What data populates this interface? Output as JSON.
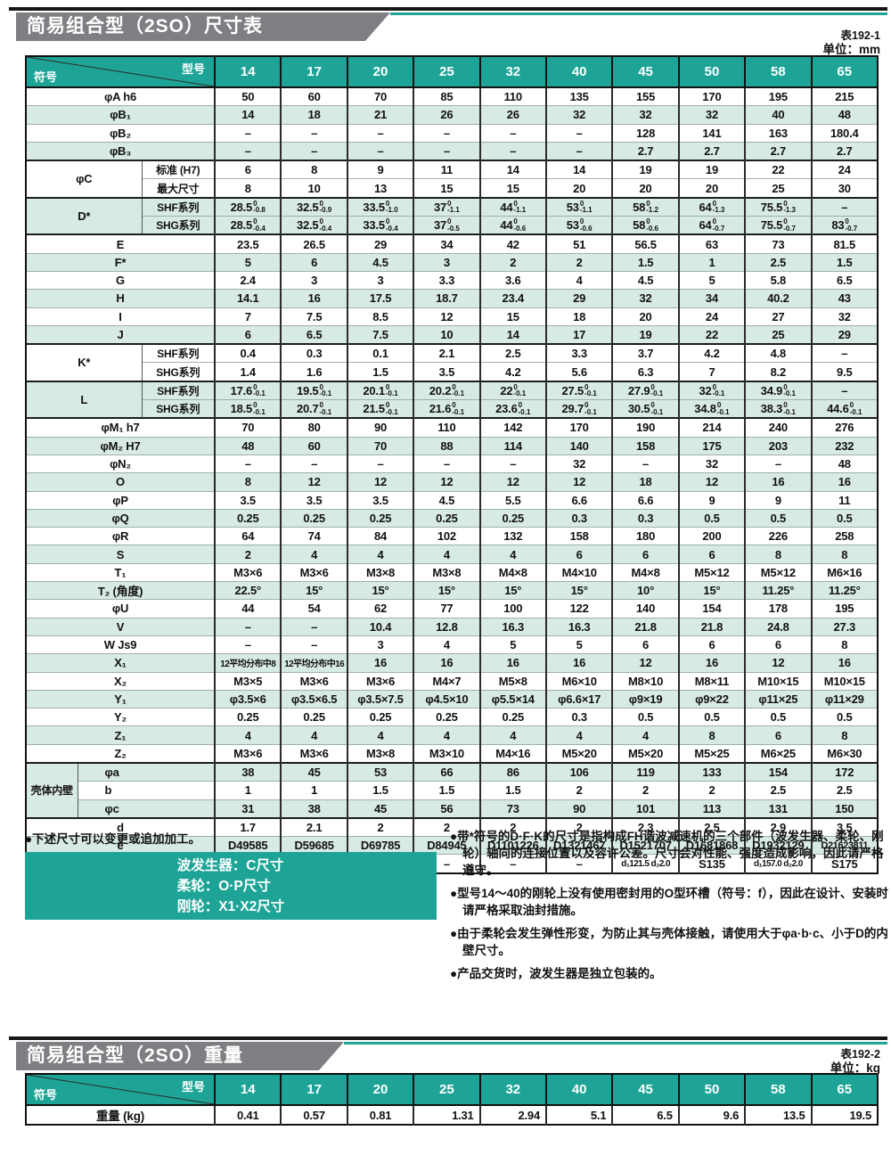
{
  "colors": {
    "teal": "#1ea496",
    "row_shade": "#d8eae6",
    "banner_gray": "#7d7f82"
  },
  "banner1": {
    "title": "简易组合型（2SO）尺寸表",
    "ref": "表192-1",
    "unit": "单位：mm"
  },
  "banner2": {
    "title": "简易组合型（2SO）重量",
    "ref": "表192-2",
    "unit": "单位：kg"
  },
  "dim_table": {
    "corner_top": "型号",
    "corner_bottom": "符号",
    "models": [
      "14",
      "17",
      "20",
      "25",
      "32",
      "40",
      "45",
      "50",
      "58",
      "65"
    ],
    "rows": [
      {
        "t": "plain",
        "label": "φA h6",
        "shade": 0,
        "cells": [
          "50",
          "60",
          "70",
          "85",
          "110",
          "135",
          "155",
          "170",
          "195",
          "215"
        ]
      },
      {
        "t": "plain",
        "label": "φB₁",
        "shade": 1,
        "cells": [
          "14",
          "18",
          "21",
          "26",
          "26",
          "32",
          "32",
          "32",
          "40",
          "48"
        ]
      },
      {
        "t": "plain",
        "label": "φB₂",
        "shade": 0,
        "cells": [
          "–",
          "–",
          "–",
          "–",
          "–",
          "–",
          "128",
          "141",
          "163",
          "180.4"
        ]
      },
      {
        "t": "plain",
        "label": "φB₃",
        "shade": 1,
        "cells": [
          "–",
          "–",
          "–",
          "–",
          "–",
          "–",
          "2.7",
          "2.7",
          "2.7",
          "2.7"
        ]
      },
      {
        "t": "g2",
        "label": "φC",
        "sub": "标准 (H7)",
        "shade": 0,
        "thick": 1,
        "cells": [
          "6",
          "8",
          "9",
          "11",
          "14",
          "14",
          "19",
          "19",
          "22",
          "24"
        ]
      },
      {
        "t": "gsub",
        "sub": "最大尺寸",
        "shade": 0,
        "cells": [
          "8",
          "10",
          "13",
          "15",
          "15",
          "20",
          "20",
          "20",
          "25",
          "30"
        ]
      },
      {
        "t": "g2",
        "label": "D*",
        "sub": "SHF系列",
        "shade": 1,
        "thick": 1,
        "cells": [
          "28.5|0|-0.8",
          "32.5|0|-0.9",
          "33.5|0|-1.0",
          "37|0|-1.1",
          "44|0|-1.1",
          "53|0|-1.1",
          "58|0|-1.2",
          "64|0|-1.3",
          "75.5|0|-1.3",
          "–"
        ]
      },
      {
        "t": "gsub",
        "sub": "SHG系列",
        "shade": 1,
        "cells": [
          "28.5|0|-0.4",
          "32.5|0|-0.4",
          "33.5|0|-0.4",
          "37|0|-0.5",
          "44|0|-0.6",
          "53|0|-0.6",
          "58|0|-0.6",
          "64|0|-0.7",
          "75.5|0|-0.7",
          "83|0|-0.7"
        ]
      },
      {
        "t": "plain",
        "label": "E",
        "shade": 0,
        "thick": 1,
        "cells": [
          "23.5",
          "26.5",
          "29",
          "34",
          "42",
          "51",
          "56.5",
          "63",
          "73",
          "81.5"
        ]
      },
      {
        "t": "plain",
        "label": "F*",
        "shade": 1,
        "cells": [
          "5",
          "6",
          "4.5",
          "3",
          "2",
          "2",
          "1.5",
          "1",
          "2.5",
          "1.5"
        ]
      },
      {
        "t": "plain",
        "label": "G",
        "shade": 0,
        "cells": [
          "2.4",
          "3",
          "3",
          "3.3",
          "3.6",
          "4",
          "4.5",
          "5",
          "5.8",
          "6.5"
        ]
      },
      {
        "t": "plain",
        "label": "H",
        "shade": 1,
        "cells": [
          "14.1",
          "16",
          "17.5",
          "18.7",
          "23.4",
          "29",
          "32",
          "34",
          "40.2",
          "43"
        ]
      },
      {
        "t": "plain",
        "label": "I",
        "shade": 0,
        "cells": [
          "7",
          "7.5",
          "8.5",
          "12",
          "15",
          "18",
          "20",
          "24",
          "27",
          "32"
        ]
      },
      {
        "t": "plain",
        "label": "J",
        "shade": 1,
        "cells": [
          "6",
          "6.5",
          "7.5",
          "10",
          "14",
          "17",
          "19",
          "22",
          "25",
          "29"
        ]
      },
      {
        "t": "g2",
        "label": "K*",
        "sub": "SHF系列",
        "shade": 0,
        "thick": 1,
        "cells": [
          "0.4",
          "0.3",
          "0.1",
          "2.1",
          "2.5",
          "3.3",
          "3.7",
          "4.2",
          "4.8",
          "–"
        ]
      },
      {
        "t": "gsub",
        "sub": "SHG系列",
        "shade": 0,
        "cells": [
          "1.4",
          "1.6",
          "1.5",
          "3.5",
          "4.2",
          "5.6",
          "6.3",
          "7",
          "8.2",
          "9.5"
        ]
      },
      {
        "t": "g2",
        "label": "L",
        "sub": "SHF系列",
        "shade": 1,
        "thick": 1,
        "cells": [
          "17.6|0|-0.1",
          "19.5|0|-0.1",
          "20.1|0|-0.1",
          "20.2|0|-0.1",
          "22|0|-0.1",
          "27.5|0|-0.1",
          "27.9|0|-0.1",
          "32|0|-0.1",
          "34.9|0|-0.1",
          "–"
        ]
      },
      {
        "t": "gsub",
        "sub": "SHG系列",
        "shade": 1,
        "cells": [
          "18.5|0|-0.1",
          "20.7|0|-0.1",
          "21.5|0|-0.1",
          "21.6|0|-0.1",
          "23.6|0|-0.1",
          "29.7|0|-0.1",
          "30.5|0|-0.1",
          "34.8|0|-0.1",
          "38.3|0|-0.1",
          "44.6|0|-0.1"
        ]
      },
      {
        "t": "plain",
        "label": "φM₁ h7",
        "shade": 0,
        "thick": 1,
        "cells": [
          "70",
          "80",
          "90",
          "110",
          "142",
          "170",
          "190",
          "214",
          "240",
          "276"
        ]
      },
      {
        "t": "plain",
        "label": "φM₂ H7",
        "shade": 1,
        "cells": [
          "48",
          "60",
          "70",
          "88",
          "114",
          "140",
          "158",
          "175",
          "203",
          "232"
        ]
      },
      {
        "t": "plain",
        "label": "φN₂",
        "shade": 0,
        "cells": [
          "–",
          "–",
          "–",
          "–",
          "–",
          "32",
          "–",
          "32",
          "–",
          "48"
        ]
      },
      {
        "t": "plain",
        "label": "O",
        "shade": 1,
        "cells": [
          "8",
          "12",
          "12",
          "12",
          "12",
          "12",
          "18",
          "12",
          "16",
          "16"
        ]
      },
      {
        "t": "plain",
        "label": "φP",
        "shade": 0,
        "cells": [
          "3.5",
          "3.5",
          "3.5",
          "4.5",
          "5.5",
          "6.6",
          "6.6",
          "9",
          "9",
          "11"
        ]
      },
      {
        "t": "plain",
        "label": "φQ",
        "shade": 1,
        "cells": [
          "0.25",
          "0.25",
          "0.25",
          "0.25",
          "0.25",
          "0.3",
          "0.3",
          "0.5",
          "0.5",
          "0.5"
        ]
      },
      {
        "t": "plain",
        "label": "φR",
        "shade": 0,
        "cells": [
          "64",
          "74",
          "84",
          "102",
          "132",
          "158",
          "180",
          "200",
          "226",
          "258"
        ]
      },
      {
        "t": "plain",
        "label": "S",
        "shade": 1,
        "cells": [
          "2",
          "4",
          "4",
          "4",
          "4",
          "6",
          "6",
          "6",
          "8",
          "8"
        ]
      },
      {
        "t": "plain",
        "label": "T₁",
        "shade": 0,
        "cells": [
          "M3×6",
          "M3×6",
          "M3×8",
          "M3×8",
          "M4×8",
          "M4×10",
          "M4×8",
          "M5×12",
          "M5×12",
          "M6×16"
        ]
      },
      {
        "t": "plain",
        "label": "T₂ (角度)",
        "shade": 1,
        "cells": [
          "22.5°",
          "15°",
          "15°",
          "15°",
          "15°",
          "15°",
          "10°",
          "15°",
          "11.25°",
          "11.25°"
        ]
      },
      {
        "t": "plain",
        "label": "φU",
        "shade": 0,
        "cells": [
          "44",
          "54",
          "62",
          "77",
          "100",
          "122",
          "140",
          "154",
          "178",
          "195"
        ]
      },
      {
        "t": "plain",
        "label": "V",
        "shade": 1,
        "cells": [
          "–",
          "–",
          "10.4",
          "12.8",
          "16.3",
          "16.3",
          "21.8",
          "21.8",
          "24.8",
          "27.3"
        ]
      },
      {
        "t": "plain",
        "label": "W Js9",
        "shade": 0,
        "cells": [
          "–",
          "–",
          "3",
          "4",
          "5",
          "5",
          "6",
          "6",
          "6",
          "8"
        ]
      },
      {
        "t": "plain",
        "label": "X₁",
        "shade": 1,
        "cells": [
          "12平均分布中8",
          "12平均分布中16",
          "16",
          "16",
          "16",
          "16",
          "12",
          "16",
          "12",
          "16"
        ]
      },
      {
        "t": "plain",
        "label": "X₂",
        "shade": 0,
        "cells": [
          "M3×5",
          "M3×6",
          "M3×6",
          "M4×7",
          "M5×8",
          "M6×10",
          "M8×10",
          "M8×11",
          "M10×15",
          "M10×15"
        ]
      },
      {
        "t": "plain",
        "label": "Y₁",
        "shade": 1,
        "cells": [
          "φ3.5×6",
          "φ3.5×6.5",
          "φ3.5×7.5",
          "φ4.5×10",
          "φ5.5×14",
          "φ6.6×17",
          "φ9×19",
          "φ9×22",
          "φ11×25",
          "φ11×29"
        ]
      },
      {
        "t": "plain",
        "label": "Y₂",
        "shade": 0,
        "cells": [
          "0.25",
          "0.25",
          "0.25",
          "0.25",
          "0.25",
          "0.3",
          "0.5",
          "0.5",
          "0.5",
          "0.5"
        ]
      },
      {
        "t": "plain",
        "label": "Z₁",
        "shade": 1,
        "cells": [
          "4",
          "4",
          "4",
          "4",
          "4",
          "4",
          "4",
          "8",
          "6",
          "8"
        ]
      },
      {
        "t": "plain",
        "label": "Z₂",
        "shade": 0,
        "cells": [
          "M3×6",
          "M3×6",
          "M3×8",
          "M3×10",
          "M4×16",
          "M5×20",
          "M5×20",
          "M5×25",
          "M6×25",
          "M6×30"
        ]
      },
      {
        "t": "h3",
        "label": "壳体内壁",
        "sub": "φa",
        "shade": 1,
        "thick": 1,
        "cells": [
          "38",
          "45",
          "53",
          "66",
          "86",
          "106",
          "119",
          "133",
          "154",
          "172"
        ]
      },
      {
        "t": "hsub",
        "sub": "b",
        "shade": 0,
        "cells": [
          "1",
          "1",
          "1.5",
          "1.5",
          "1.5",
          "2",
          "2",
          "2",
          "2.5",
          "2.5"
        ]
      },
      {
        "t": "hsub",
        "sub": "φc",
        "shade": 1,
        "cells": [
          "31",
          "38",
          "45",
          "56",
          "73",
          "90",
          "101",
          "113",
          "131",
          "150"
        ]
      },
      {
        "t": "plain",
        "label": "d",
        "shade": 0,
        "thick": 1,
        "cells": [
          "1.7",
          "2.1",
          "2",
          "2",
          "2",
          "2",
          "2.3",
          "2.5",
          "2.9",
          "3.5"
        ]
      },
      {
        "t": "plain",
        "label": "e",
        "shade": 1,
        "cells": [
          "D49585",
          "D59685",
          "D69785",
          "D84945",
          "D1101226",
          "D1321467",
          "D1521707",
          "D1681868",
          "D1932129",
          "D21623811"
        ]
      },
      {
        "t": "plain",
        "label": "f",
        "shade": 0,
        "cells": [
          "–",
          "–",
          "–",
          "–",
          "–",
          "–",
          "d₁121.5 d₂2.0",
          "S135",
          "d₁157.0 d₂2.0",
          "S175"
        ]
      }
    ]
  },
  "notes": {
    "left_bullet": "●下述尺寸可以变更或追加加工。",
    "box_lines": [
      "波发生器：C尺寸",
      "柔轮：O·P尺寸",
      "刚轮：X1·X2尺寸"
    ],
    "right": [
      "●带*符号的D·F·K的尺寸是指构成FH谐波减速机的三个部件（波发生器、柔轮、刚轮）轴向的连接位置以及容许公差。尺寸会对性能、强度造成影响，因此请严格遵守。",
      "●型号14～40的刚轮上没有使用密封用的O型环槽（符号：f），因此在设计、安装时请严格采取油封措施。",
      "●由于柔轮会发生弹性形变，为防止其与壳体接触，请使用大于φa·b·c、小于D的内壁尺寸。",
      "●产品交货时，波发生器是独立包装的。"
    ]
  },
  "weight_table": {
    "corner_top": "型号",
    "corner_bottom": "符号",
    "models": [
      "14",
      "17",
      "20",
      "25",
      "32",
      "40",
      "45",
      "50",
      "58",
      "65"
    ],
    "row_label": "重量 (kg)",
    "values": [
      "0.41",
      "0.57",
      "0.81",
      "1.31",
      "2.94",
      "5.1",
      "6.5",
      "9.6",
      "13.5",
      "19.5"
    ]
  }
}
